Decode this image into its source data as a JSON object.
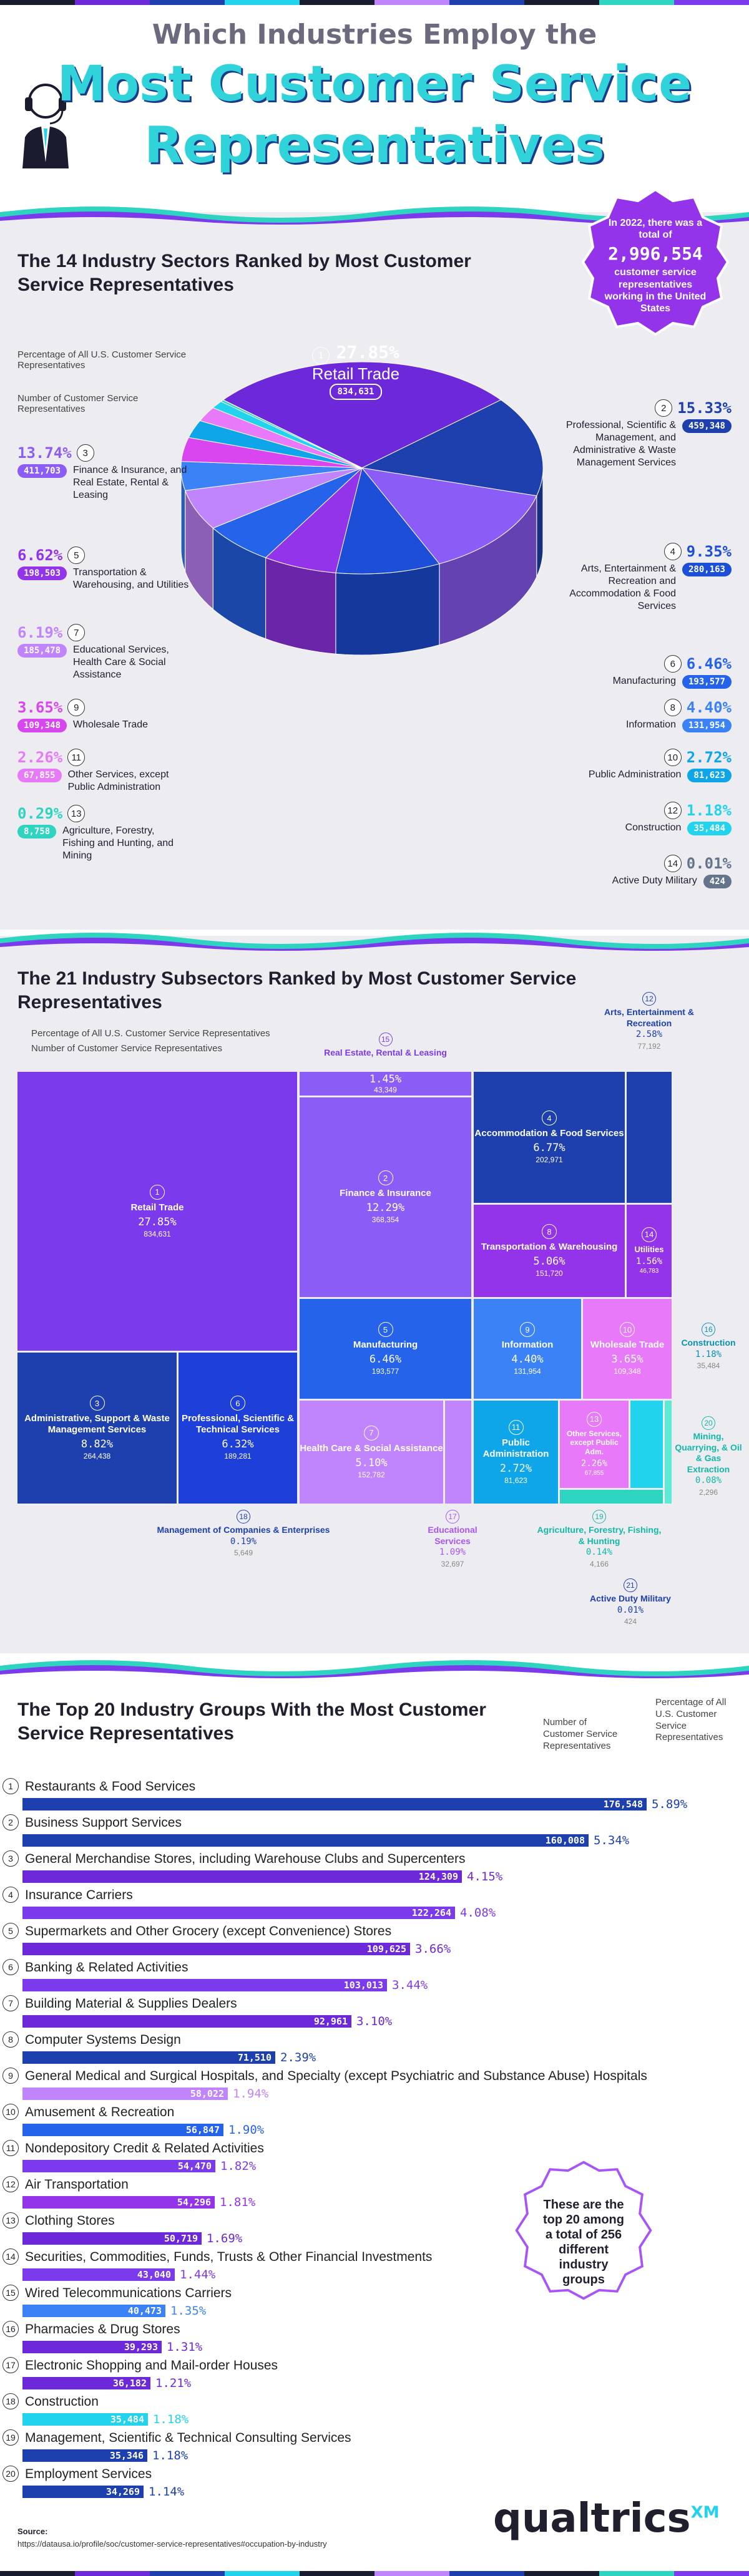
{
  "header": {
    "line1": "Which Industries Employ the",
    "line2": "Most Customer Service",
    "line3": "Representatives"
  },
  "colors": {
    "purple": "#7b2ff7",
    "blue": "#1e3fd8",
    "violet": "#a855f7",
    "magenta": "#c026d3",
    "pink": "#e879f9",
    "cyan": "#22d3ee",
    "teal": "#14b8a6",
    "navy": "#1b3a8c",
    "gray": "#6b6b7d"
  },
  "section1": {
    "title": "The 14 Industry Sectors Ranked by Most Customer Service Representatives",
    "legend_pct": "Percentage of All U.S. Customer Service Representatives",
    "legend_num": "Number of Customer Service Representatives",
    "badge": {
      "line1": "In 2022, there was a total of",
      "number": "2,996,554",
      "line2": "customer service representatives working in the United States"
    }
  },
  "section2": {
    "title": "The 21 Industry Subsectors Ranked by Most Customer Service Representatives",
    "legend_pct": "Percentage of All U.S. Customer Service Representatives",
    "legend_num": "Number of Customer Service Representatives"
  },
  "section3": {
    "title": "The Top 20 Industry Groups With the Most Customer Service Representatives",
    "col_num": "Number of Customer Service Representatives",
    "col_pct": "Percentage of All U.S. Customer Service Representatives",
    "note": "These are the top 20 among a total of 256 different industry groups"
  },
  "footer": {
    "source_label": "Source:",
    "source_url": "https://datausa.io/profile/soc/customer-service-representatives#occupation-by-industry",
    "brand": "qualtrics",
    "brand_sup": "XM"
  },
  "chart_data": [
    {
      "type": "pie",
      "title": "The 14 Industry Sectors Ranked by Most Customer Service Representatives",
      "slices": [
        {
          "rank": "1",
          "label": "Retail Trade",
          "pct": "27.85%",
          "value": "834,631",
          "share": 27.85,
          "color": "#6d28d9"
        },
        {
          "rank": "2",
          "label": "Professional, Scientific & Management, and Administrative & Waste Management Services",
          "pct": "15.33%",
          "value": "459,348",
          "share": 15.33,
          "color": "#1e40af"
        },
        {
          "rank": "3",
          "label": "Finance & Insurance, and Real Estate, Rental & Leasing",
          "pct": "13.74%",
          "value": "411,703",
          "share": 13.74,
          "color": "#8b5cf6"
        },
        {
          "rank": "4",
          "label": "Arts, Entertainment & Recreation and Accommodation & Food Services",
          "pct": "9.35%",
          "value": "280,163",
          "share": 9.35,
          "color": "#1d4ed8"
        },
        {
          "rank": "5",
          "label": "Transportation & Warehousing, and Utilities",
          "pct": "6.62%",
          "value": "198,503",
          "share": 6.62,
          "color": "#9333ea"
        },
        {
          "rank": "6",
          "label": "Manufacturing",
          "pct": "6.46%",
          "value": "193,577",
          "share": 6.46,
          "color": "#2563eb"
        },
        {
          "rank": "7",
          "label": "Educational Services, Health Care & Social Assistance",
          "pct": "6.19%",
          "value": "185,478",
          "share": 6.19,
          "color": "#c084fc"
        },
        {
          "rank": "8",
          "label": "Information",
          "pct": "4.40%",
          "value": "131,954",
          "share": 4.4,
          "color": "#3b82f6"
        },
        {
          "rank": "9",
          "label": "Wholesale Trade",
          "pct": "3.65%",
          "value": "109,348",
          "share": 3.65,
          "color": "#d946ef"
        },
        {
          "rank": "10",
          "label": "Public Administration",
          "pct": "2.72%",
          "value": "81,623",
          "share": 2.72,
          "color": "#0ea5e9"
        },
        {
          "rank": "11",
          "label": "Other Services, except Public Administration",
          "pct": "2.26%",
          "value": "67,855",
          "share": 2.26,
          "color": "#e879f9"
        },
        {
          "rank": "12",
          "label": "Construction",
          "pct": "1.18%",
          "value": "35,484",
          "share": 1.18,
          "color": "#22d3ee"
        },
        {
          "rank": "13",
          "label": "Agriculture, Forestry, Fishing and Hunting, and Mining",
          "pct": "0.29%",
          "value": "8,758",
          "share": 0.29,
          "color": "#2dd4bf"
        },
        {
          "rank": "14",
          "label": "Active Duty Military",
          "pct": "0.01%",
          "value": "424",
          "share": 0.01,
          "color": "#64748b"
        }
      ]
    },
    {
      "type": "treemap",
      "title": "The 21 Industry Subsectors Ranked by Most Customer Service Representatives",
      "tiles": [
        {
          "rank": "1",
          "label": "Retail Trade",
          "pct": "27.85%",
          "value": "834,631"
        },
        {
          "rank": "2",
          "label": "Finance & Insurance",
          "pct": "12.29%",
          "value": "368,354"
        },
        {
          "rank": "3",
          "label": "Administrative, Support & Waste Management Services",
          "pct": "8.82%",
          "value": "264,438"
        },
        {
          "rank": "4",
          "label": "Accommodation & Food Services",
          "pct": "6.77%",
          "value": "202,971"
        },
        {
          "rank": "5",
          "label": "Manufacturing",
          "pct": "6.46%",
          "value": "193,577"
        },
        {
          "rank": "6",
          "label": "Professional, Scientific & Technical Services",
          "pct": "6.32%",
          "value": "189,281"
        },
        {
          "rank": "7",
          "label": "Health Care & Social Assistance",
          "pct": "5.10%",
          "value": "152,782"
        },
        {
          "rank": "8",
          "label": "Transportation & Warehousing",
          "pct": "5.06%",
          "value": "151,720"
        },
        {
          "rank": "9",
          "label": "Information",
          "pct": "4.40%",
          "value": "131,954"
        },
        {
          "rank": "10",
          "label": "Wholesale Trade",
          "pct": "3.65%",
          "value": "109,348"
        },
        {
          "rank": "11",
          "label": "Public Administration",
          "pct": "2.72%",
          "value": "81,623"
        },
        {
          "rank": "12",
          "label": "Arts, Entertainment & Recreation",
          "pct": "2.58%",
          "value": "77,192"
        },
        {
          "rank": "13",
          "label": "Other Services, except Public Adm.",
          "pct": "2.26%",
          "value": "67,855"
        },
        {
          "rank": "14",
          "label": "Utilities",
          "pct": "1.56%",
          "value": "46,783"
        },
        {
          "rank": "15",
          "label": "Real Estate, Rental & Leasing",
          "pct": "1.45%",
          "value": "43,349"
        },
        {
          "rank": "16",
          "label": "Construction",
          "pct": "1.18%",
          "value": "35,484"
        },
        {
          "rank": "17",
          "label": "Educational Services",
          "pct": "1.09%",
          "value": "32,697"
        },
        {
          "rank": "18",
          "label": "Management of Companies & Enterprises",
          "pct": "0.19%",
          "value": "5,649"
        },
        {
          "rank": "19",
          "label": "Agriculture, Forestry, Fishing, & Hunting",
          "pct": "0.14%",
          "value": "4,166"
        },
        {
          "rank": "20",
          "label": "Mining, Quarrying, & Oil & Gas Extraction",
          "pct": "0.08%",
          "value": "2,296"
        },
        {
          "rank": "21",
          "label": "Active Duty Military",
          "pct": "0.01%",
          "value": "424"
        }
      ]
    },
    {
      "type": "bar",
      "title": "The Top 20 Industry Groups With the Most Customer Service Representatives",
      "xlim": [
        0,
        180000
      ],
      "rows": [
        {
          "rank": "1",
          "label": "Restaurants & Food Services",
          "value": 176548,
          "value_label": "176,548",
          "pct": "5.89%",
          "color": "#1e40af"
        },
        {
          "rank": "2",
          "label": "Business Support Services",
          "value": 160008,
          "value_label": "160,008",
          "pct": "5.34%",
          "color": "#1e40af"
        },
        {
          "rank": "3",
          "label": "General Merchandise Stores, including Warehouse Clubs and Supercenters",
          "value": 124309,
          "value_label": "124,309",
          "pct": "4.15%",
          "color": "#6d28d9"
        },
        {
          "rank": "4",
          "label": "Insurance Carriers",
          "value": 122264,
          "value_label": "122,264",
          "pct": "4.08%",
          "color": "#7c3aed"
        },
        {
          "rank": "5",
          "label": "Supermarkets and Other Grocery (except Convenience) Stores",
          "value": 109625,
          "value_label": "109,625",
          "pct": "3.66%",
          "color": "#6d28d9"
        },
        {
          "rank": "6",
          "label": "Banking & Related Activities",
          "value": 103013,
          "value_label": "103,013",
          "pct": "3.44%",
          "color": "#7c3aed"
        },
        {
          "rank": "7",
          "label": "Building Material & Supplies Dealers",
          "value": 92961,
          "value_label": "92,961",
          "pct": "3.10%",
          "color": "#6d28d9"
        },
        {
          "rank": "8",
          "label": "Computer Systems Design",
          "value": 71510,
          "value_label": "71,510",
          "pct": "2.39%",
          "color": "#1e40af"
        },
        {
          "rank": "9",
          "label": "General Medical and Surgical Hospitals, and Specialty (except Psychiatric and Substance Abuse) Hospitals",
          "value": 58022,
          "value_label": "58,022",
          "pct": "1.94%",
          "color": "#c084fc"
        },
        {
          "rank": "10",
          "label": "Amusement & Recreation",
          "value": 56847,
          "value_label": "56,847",
          "pct": "1.90%",
          "color": "#2563eb"
        },
        {
          "rank": "11",
          "label": "Nondepository Credit & Related Activities",
          "value": 54470,
          "value_label": "54,470",
          "pct": "1.82%",
          "color": "#7c3aed"
        },
        {
          "rank": "12",
          "label": "Air Transportation",
          "value": 54296,
          "value_label": "54,296",
          "pct": "1.81%",
          "color": "#9333ea"
        },
        {
          "rank": "13",
          "label": "Clothing Stores",
          "value": 50719,
          "value_label": "50,719",
          "pct": "1.69%",
          "color": "#6d28d9"
        },
        {
          "rank": "14",
          "label": "Securities, Commodities, Funds, Trusts & Other Financial Investments",
          "value": 43040,
          "value_label": "43,040",
          "pct": "1.44%",
          "color": "#7c3aed"
        },
        {
          "rank": "15",
          "label": "Wired Telecommunications Carriers",
          "value": 40473,
          "value_label": "40,473",
          "pct": "1.35%",
          "color": "#3b82f6"
        },
        {
          "rank": "16",
          "label": "Pharmacies & Drug Stores",
          "value": 39293,
          "value_label": "39,293",
          "pct": "1.31%",
          "color": "#6d28d9"
        },
        {
          "rank": "17",
          "label": "Electronic Shopping and Mail-order Houses",
          "value": 36182,
          "value_label": "36,182",
          "pct": "1.21%",
          "color": "#6d28d9"
        },
        {
          "rank": "18",
          "label": "Construction",
          "value": 35484,
          "value_label": "35,484",
          "pct": "1.18%",
          "color": "#22d3ee"
        },
        {
          "rank": "19",
          "label": "Management, Scientific & Technical Consulting Services",
          "value": 35346,
          "value_label": "35,346",
          "pct": "1.18%",
          "color": "#1e40af"
        },
        {
          "rank": "20",
          "label": "Employment Services",
          "value": 34269,
          "value_label": "34,269",
          "pct": "1.14%",
          "color": "#1e40af"
        }
      ]
    }
  ]
}
